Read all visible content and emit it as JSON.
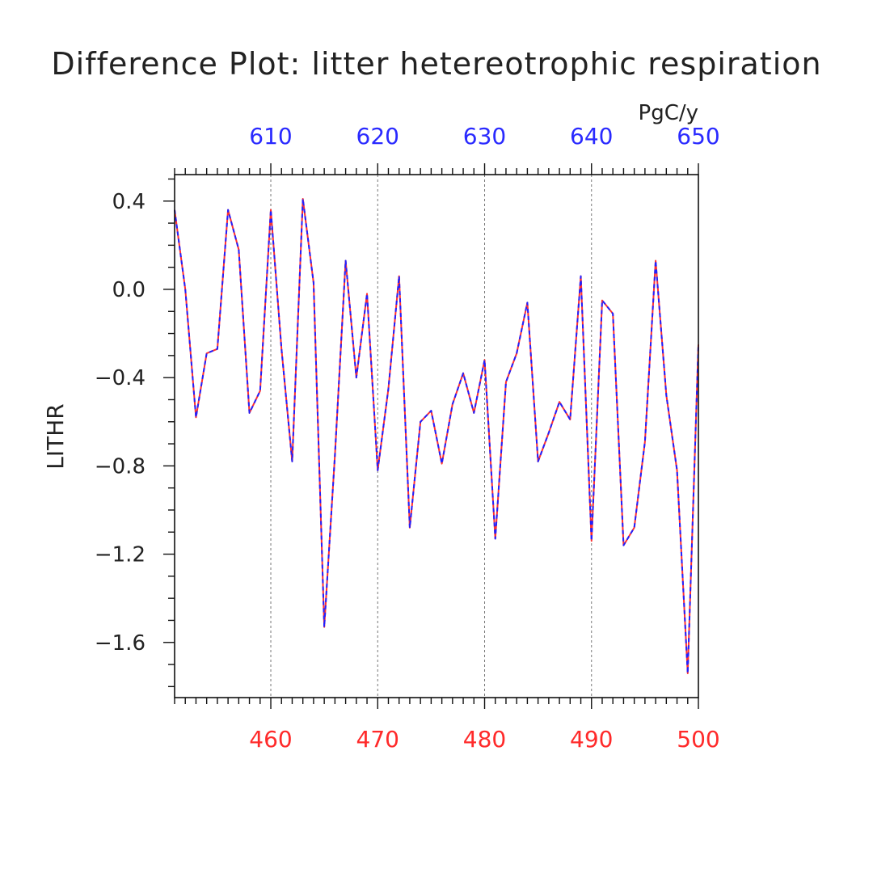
{
  "chart_data": {
    "type": "line",
    "title": "Difference Plot: litter hetereotrophic respiration",
    "units": "PgC/y",
    "ylabel": "LITHR",
    "xlabel": "",
    "xlim": [
      451,
      500
    ],
    "ylim": [
      -1.85,
      0.52
    ],
    "grid": "vertical dashed at major x ticks",
    "y_ticks": [
      0.4,
      0.0,
      -0.4,
      -0.8,
      -1.2,
      -1.6
    ],
    "y_tick_labels": [
      "0.4",
      "0.0",
      "−0.4",
      "−0.8",
      "−1.2",
      "−1.6"
    ],
    "x_bottom_ticks": [
      460,
      470,
      480,
      490,
      500
    ],
    "x_bottom_tick_labels": [
      "460",
      "470",
      "480",
      "490",
      "500"
    ],
    "x_top_ticks": [
      460,
      470,
      480,
      490,
      500
    ],
    "x_top_tick_labels": [
      "610",
      "620",
      "630",
      "640",
      "650"
    ],
    "colors": {
      "bottom_axis": "#ff2a2a",
      "top_axis": "#2a2aff",
      "series_1": "#ff3030",
      "series_2": "#2020ff"
    },
    "x": [
      451,
      452,
      453,
      454,
      455,
      456,
      457,
      458,
      459,
      460,
      461,
      462,
      463,
      464,
      465,
      466,
      467,
      468,
      469,
      470,
      471,
      472,
      473,
      474,
      475,
      476,
      477,
      478,
      479,
      480,
      481,
      482,
      483,
      484,
      485,
      486,
      487,
      488,
      489,
      490,
      491,
      492,
      493,
      494,
      495,
      496,
      497,
      498,
      499,
      500
    ],
    "series": [
      {
        "values": [
          0.36,
          0.0,
          -0.58,
          -0.29,
          -0.27,
          0.36,
          0.18,
          -0.56,
          -0.46,
          0.36,
          -0.27,
          -0.78,
          0.41,
          0.03,
          -1.53,
          -0.75,
          0.13,
          -0.4,
          -0.02,
          -0.82,
          -0.45,
          0.06,
          -1.08,
          -0.6,
          -0.55,
          -0.79,
          -0.52,
          -0.38,
          -0.56,
          -0.32,
          -1.13,
          -0.42,
          -0.29,
          -0.06,
          -0.78,
          -0.65,
          -0.51,
          -0.59,
          0.06,
          -1.14,
          -0.05,
          -0.11,
          -1.16,
          -1.08,
          -0.69,
          0.13,
          -0.48,
          -0.82,
          -1.74,
          -0.25
        ]
      },
      {
        "values": [
          0.36,
          0.0,
          -0.58,
          -0.29,
          -0.27,
          0.36,
          0.18,
          -0.56,
          -0.46,
          0.36,
          -0.27,
          -0.78,
          0.41,
          0.03,
          -1.53,
          -0.75,
          0.13,
          -0.4,
          -0.02,
          -0.82,
          -0.45,
          0.06,
          -1.08,
          -0.6,
          -0.55,
          -0.79,
          -0.52,
          -0.38,
          -0.56,
          -0.32,
          -1.13,
          -0.42,
          -0.29,
          -0.06,
          -0.78,
          -0.65,
          -0.51,
          -0.59,
          0.06,
          -1.14,
          -0.05,
          -0.11,
          -1.16,
          -1.08,
          -0.69,
          0.13,
          -0.48,
          -0.82,
          -1.74,
          -0.25
        ]
      }
    ]
  }
}
